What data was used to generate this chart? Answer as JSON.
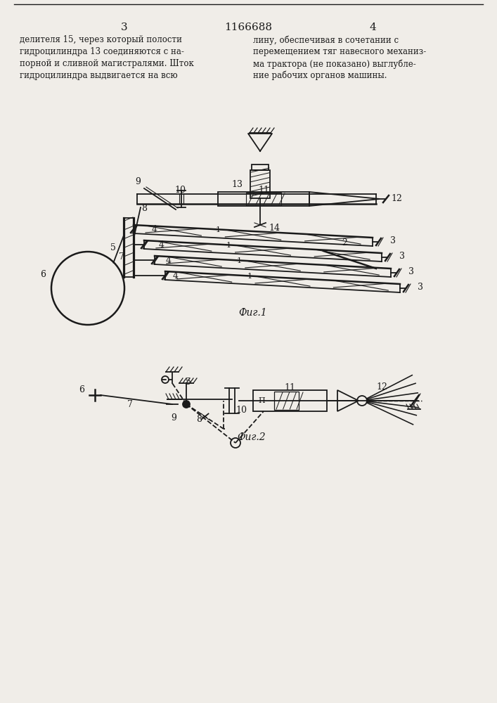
{
  "bg_color": "#f0ede8",
  "line_color": "#1a1a1a",
  "text_color": "#1a1a1a",
  "title": "1166688",
  "page_left": "3",
  "page_right": "4",
  "fig1_label": "Фиг.1",
  "fig2_label": "Фиг.2",
  "text_left_line1": "делителя 15, через который полости",
  "text_left_line2": "гидроцилиндра 13 соединяются с на-",
  "text_left_line3": "порной и сливной магистралями. Шток",
  "text_left_line4": "гидроцилиндра выдвигается на всю",
  "text_right_line1": "лину, обеспечивая в сочетании с",
  "text_right_line2": "перемещением тяг навесного механиз-",
  "text_right_line3": "ма трактора (не показано) выглубле-",
  "text_right_line4": "ние рабочих органов машины."
}
